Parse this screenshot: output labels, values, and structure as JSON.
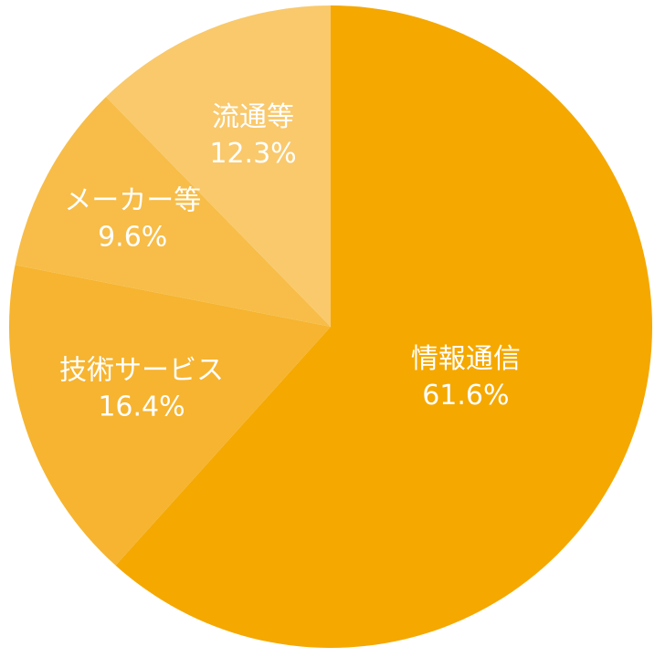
{
  "chart_data": {
    "type": "pie",
    "categories": [
      "情報通信",
      "技術サービス",
      "メーカー等",
      "流通等"
    ],
    "values": [
      61.6,
      16.4,
      9.6,
      12.3
    ],
    "value_labels": [
      "61.6%",
      "16.4%",
      "9.6%",
      "12.3%"
    ],
    "colors": [
      "#f5a800",
      "#f6b430",
      "#f7bd48",
      "#f9c96c"
    ]
  }
}
